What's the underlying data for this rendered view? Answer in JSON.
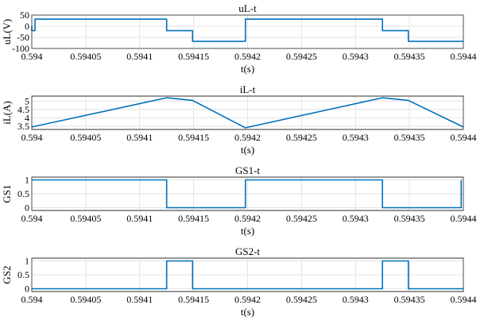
{
  "colors": {
    "series": "#0072BD",
    "grid": "#e3e3e3",
    "axis": "#262626"
  },
  "chart_data": [
    {
      "type": "line",
      "title": "uL-t",
      "xlabel": "t(s)",
      "ylabel": "uL(V)",
      "xlim": [
        0.594,
        0.5944
      ],
      "ylim": [
        -100,
        50
      ],
      "grid": true,
      "xticks": [
        0.594,
        0.59405,
        0.5941,
        0.59415,
        0.5942,
        0.59425,
        0.5943,
        0.59435,
        0.5944
      ],
      "xtick_labels": [
        "0.594",
        "0.59405",
        "0.5941",
        "0.59415",
        "0.5942",
        "0.59425",
        "0.5943",
        "0.59435",
        "0.5944"
      ],
      "yticks": [
        -100,
        -50,
        0,
        50
      ],
      "ytick_labels": [
        "-100",
        "-50",
        "0",
        "50"
      ],
      "series": [
        {
          "x": [
            0.594,
            0.594,
            0.594003,
            0.594003,
            0.594125,
            0.594125,
            0.594149,
            0.594149,
            0.594198,
            0.594198,
            0.594325,
            0.594325,
            0.594349,
            0.594349,
            0.5944
          ],
          "y": [
            0,
            -20,
            -20,
            32,
            32,
            -20,
            -20,
            -68,
            -68,
            32,
            32,
            -20,
            -20,
            -68,
            -68
          ]
        }
      ]
    },
    {
      "type": "line",
      "title": "iL-t",
      "xlabel": "t(s)",
      "ylabel": "iL(A)",
      "xlim": [
        0.594,
        0.5944
      ],
      "ylim": [
        3.3,
        5.3
      ],
      "grid": true,
      "xticks": [
        0.594,
        0.59405,
        0.5941,
        0.59415,
        0.5942,
        0.59425,
        0.5943,
        0.59435,
        0.5944
      ],
      "xtick_labels": [
        "0.594",
        "0.59405",
        "0.5941",
        "0.59415",
        "0.5942",
        "0.59425",
        "0.5943",
        "0.59435",
        "0.5944"
      ],
      "yticks": [
        3.5,
        4,
        4.5,
        5
      ],
      "ytick_labels": [
        "3.5",
        "4",
        "4.5",
        "5"
      ],
      "series": [
        {
          "x": [
            0.594,
            0.594125,
            0.594149,
            0.594198,
            0.594325,
            0.594349,
            0.5944
          ],
          "y": [
            3.45,
            5.2,
            5.04,
            3.4,
            5.2,
            5.04,
            3.45
          ]
        }
      ]
    },
    {
      "type": "line",
      "title": "GS1-t",
      "xlabel": "t(s)",
      "ylabel": "GS1",
      "xlim": [
        0.594,
        0.5944
      ],
      "ylim": [
        -0.1,
        1.1
      ],
      "grid": true,
      "xticks": [
        0.594,
        0.59405,
        0.5941,
        0.59415,
        0.5942,
        0.59425,
        0.5943,
        0.59435,
        0.5944
      ],
      "xtick_labels": [
        "0.594",
        "0.59405",
        "0.5941",
        "0.59415",
        "0.5942",
        "0.59425",
        "0.5943",
        "0.59435",
        "0.5944"
      ],
      "yticks": [
        0,
        0.5,
        1
      ],
      "ytick_labels": [
        "0",
        "0.5",
        "1"
      ],
      "series": [
        {
          "x": [
            0.594,
            0.594125,
            0.594125,
            0.594198,
            0.594198,
            0.594325,
            0.594325,
            0.594398,
            0.594398
          ],
          "y": [
            1,
            1,
            0,
            0,
            1,
            1,
            0,
            0,
            1
          ]
        }
      ]
    },
    {
      "type": "line",
      "title": "GS2-t",
      "xlabel": "t(s)",
      "ylabel": "GS2",
      "xlim": [
        0.594,
        0.5944
      ],
      "ylim": [
        -0.1,
        1.1
      ],
      "grid": true,
      "xticks": [
        0.594,
        0.59405,
        0.5941,
        0.59415,
        0.5942,
        0.59425,
        0.5943,
        0.59435,
        0.5944
      ],
      "xtick_labels": [
        "0.594",
        "0.59405",
        "0.5941",
        "0.59415",
        "0.5942",
        "0.59425",
        "0.5943",
        "0.59435",
        "0.5944"
      ],
      "yticks": [
        0,
        0.5,
        1
      ],
      "ytick_labels": [
        "0",
        "0.5",
        "1"
      ],
      "series": [
        {
          "x": [
            0.594,
            0.594125,
            0.594125,
            0.594149,
            0.594149,
            0.594325,
            0.594325,
            0.594349,
            0.594349,
            0.5944
          ],
          "y": [
            0,
            0,
            1,
            1,
            0,
            0,
            1,
            1,
            0,
            0
          ]
        }
      ]
    }
  ]
}
